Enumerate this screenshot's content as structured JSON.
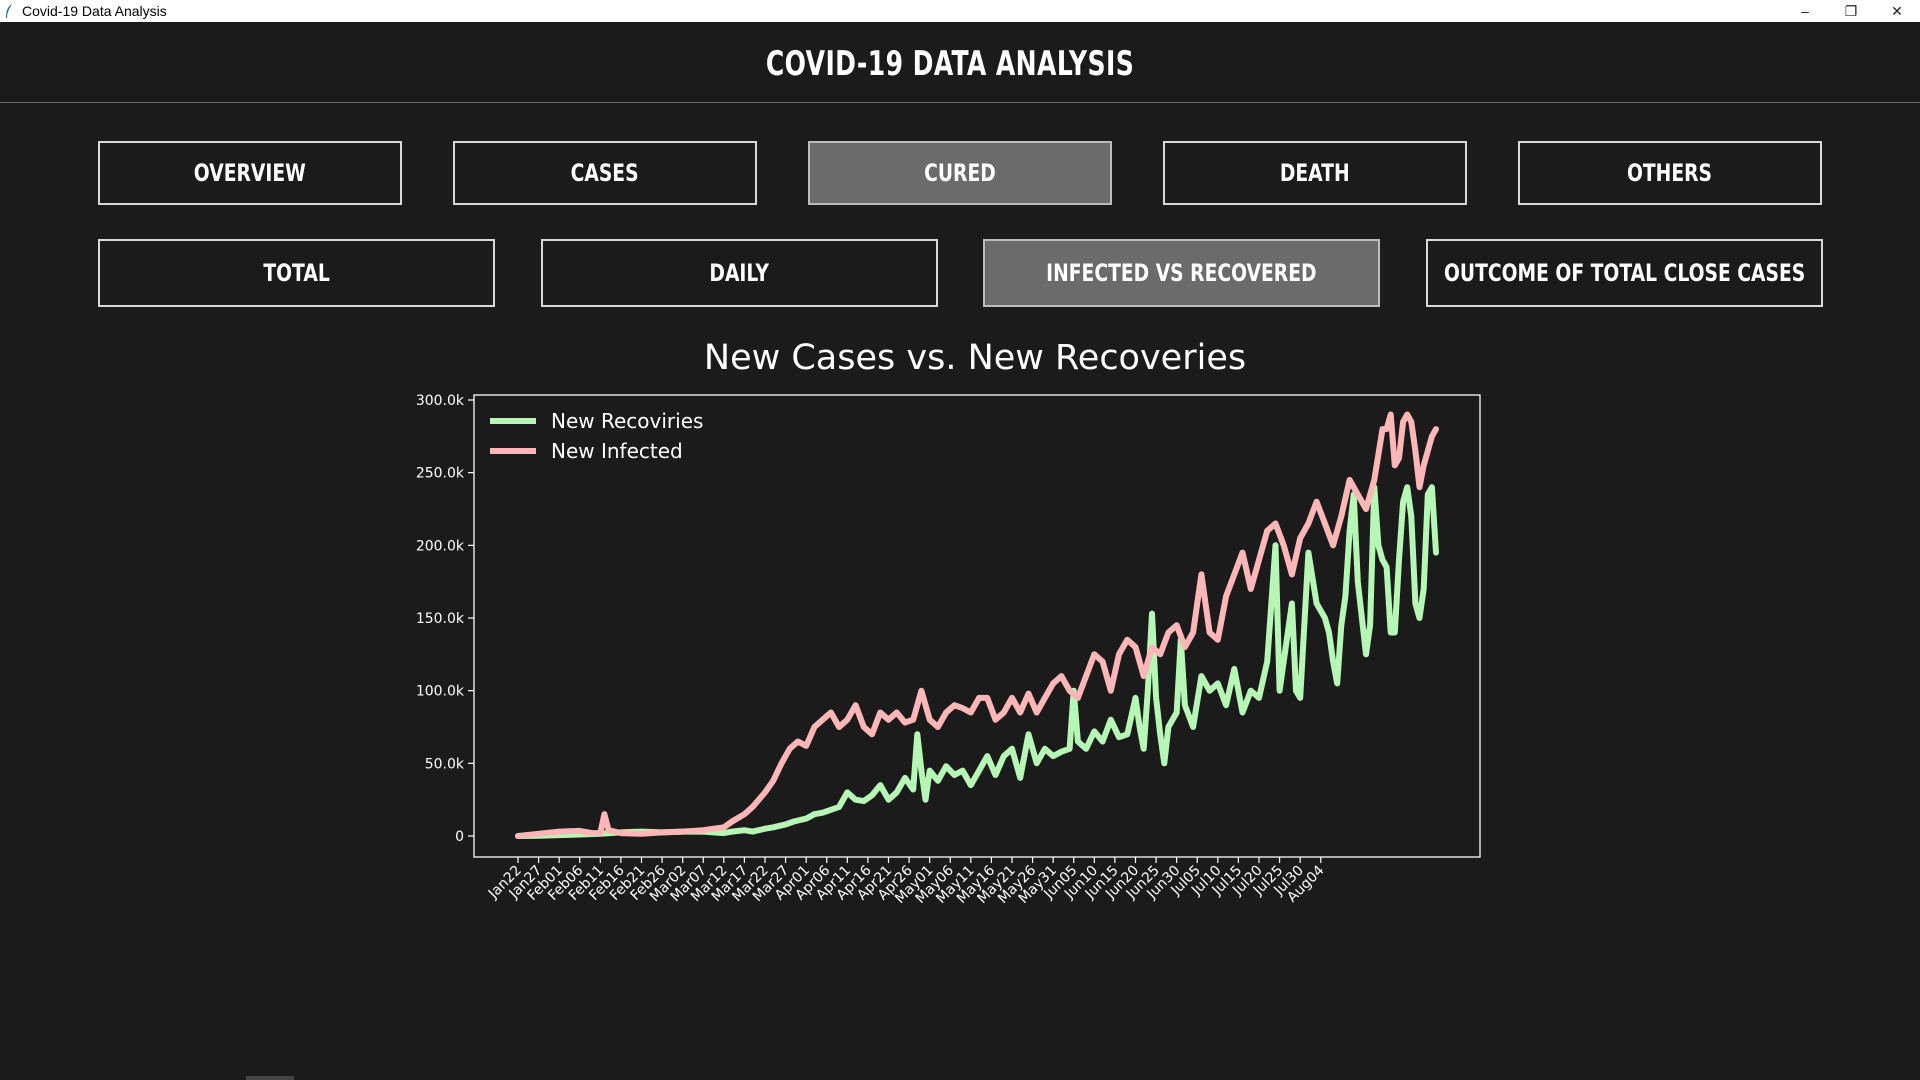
{
  "window": {
    "title": "Covid-19 Data Analysis",
    "minimize": "–",
    "restore": "❐",
    "close": "✕"
  },
  "header": {
    "title": "COVID-19 DATA ANALYSIS"
  },
  "nav": {
    "tabs": [
      {
        "label": "OVERVIEW",
        "active": false
      },
      {
        "label": "CASES",
        "active": false
      },
      {
        "label": "CURED",
        "active": true
      },
      {
        "label": "DEATH",
        "active": false
      },
      {
        "label": "OTHERS",
        "active": false
      }
    ],
    "subtabs": [
      {
        "label": "TOTAL",
        "active": false
      },
      {
        "label": "DAILY",
        "active": false
      },
      {
        "label": "INFECTED VS RECOVERED",
        "active": true
      },
      {
        "label": "OUTCOME OF TOTAL CLOSE CASES",
        "active": false
      }
    ]
  },
  "colors": {
    "background": "#1b1b1c",
    "recovered": "#b6f7b5",
    "infected": "#ffb6b6",
    "active_tab": "#6b6b6b"
  },
  "chart_data": {
    "type": "line",
    "title": "New Cases vs. New Recoveries",
    "xlabel": "",
    "ylabel": "",
    "ylim": [
      -15000,
      300000
    ],
    "legend_position": "top-left",
    "grid": false,
    "y_ticks": [
      0,
      50000,
      100000,
      150000,
      200000,
      250000,
      300000
    ],
    "y_tick_labels": [
      "0",
      "50.0k",
      "100.0k",
      "150.0k",
      "200.0k",
      "250.0k",
      "300.0k"
    ],
    "x_tick_labels": [
      "Jan22",
      "Jan27",
      "Feb01",
      "Feb06",
      "Feb11",
      "Feb16",
      "Feb21",
      "Feb26",
      "Mar02",
      "Mar07",
      "Mar12",
      "Mar17",
      "Mar22",
      "Mar27",
      "Apr01",
      "Apr06",
      "Apr11",
      "Apr16",
      "Apr21",
      "Apr26",
      "May01",
      "May06",
      "May11",
      "May16",
      "May21",
      "May26",
      "May31",
      "Jun05",
      "Jun10",
      "Jun15",
      "Jun20",
      "Jun25",
      "Jun30",
      "Jul05",
      "Jul10",
      "Jul15",
      "Jul20",
      "Jul25",
      "Jul30",
      "Aug04"
    ],
    "series": [
      {
        "name": "New Recoviries",
        "color": "#b6f7b5",
        "points": [
          [
            0,
            0
          ],
          [
            5,
            200
          ],
          [
            10,
            600
          ],
          [
            15,
            1000
          ],
          [
            20,
            1500
          ],
          [
            25,
            2500
          ],
          [
            30,
            3000
          ],
          [
            35,
            2500
          ],
          [
            40,
            3000
          ],
          [
            45,
            3000
          ],
          [
            50,
            2000
          ],
          [
            52,
            3000
          ],
          [
            55,
            4000
          ],
          [
            57,
            3000
          ],
          [
            60,
            5000
          ],
          [
            62,
            6000
          ],
          [
            65,
            8000
          ],
          [
            67,
            10000
          ],
          [
            70,
            12000
          ],
          [
            72,
            15000
          ],
          [
            74,
            16000
          ],
          [
            76,
            18000
          ],
          [
            78,
            20000
          ],
          [
            80,
            30000
          ],
          [
            82,
            25000
          ],
          [
            84,
            24000
          ],
          [
            86,
            28000
          ],
          [
            88,
            35000
          ],
          [
            90,
            25000
          ],
          [
            92,
            30000
          ],
          [
            94,
            40000
          ],
          [
            96,
            32000
          ],
          [
            97,
            70000
          ],
          [
            98,
            45000
          ],
          [
            99,
            25000
          ],
          [
            100,
            45000
          ],
          [
            102,
            38000
          ],
          [
            104,
            48000
          ],
          [
            106,
            42000
          ],
          [
            108,
            45000
          ],
          [
            110,
            35000
          ],
          [
            112,
            45000
          ],
          [
            114,
            55000
          ],
          [
            116,
            42000
          ],
          [
            118,
            55000
          ],
          [
            120,
            60000
          ],
          [
            122,
            40000
          ],
          [
            124,
            70000
          ],
          [
            126,
            50000
          ],
          [
            128,
            60000
          ],
          [
            130,
            55000
          ],
          [
            132,
            58000
          ],
          [
            134,
            60000
          ],
          [
            135,
            100000
          ],
          [
            136,
            65000
          ],
          [
            138,
            60000
          ],
          [
            140,
            72000
          ],
          [
            142,
            65000
          ],
          [
            144,
            80000
          ],
          [
            146,
            68000
          ],
          [
            148,
            70000
          ],
          [
            150,
            95000
          ],
          [
            151,
            75000
          ],
          [
            152,
            60000
          ],
          [
            153,
            100000
          ],
          [
            154,
            153000
          ],
          [
            155,
            95000
          ],
          [
            156,
            70000
          ],
          [
            157,
            50000
          ],
          [
            158,
            75000
          ],
          [
            160,
            85000
          ],
          [
            161,
            135000
          ],
          [
            162,
            90000
          ],
          [
            164,
            75000
          ],
          [
            166,
            110000
          ],
          [
            168,
            100000
          ],
          [
            170,
            105000
          ],
          [
            172,
            90000
          ],
          [
            174,
            115000
          ],
          [
            176,
            85000
          ],
          [
            178,
            100000
          ],
          [
            180,
            95000
          ],
          [
            182,
            120000
          ],
          [
            184,
            200000
          ],
          [
            185,
            100000
          ],
          [
            186,
            120000
          ],
          [
            188,
            160000
          ],
          [
            189,
            100000
          ],
          [
            190,
            95000
          ],
          [
            192,
            195000
          ],
          [
            194,
            160000
          ],
          [
            196,
            150000
          ],
          [
            197,
            140000
          ],
          [
            198,
            120000
          ],
          [
            199,
            105000
          ],
          [
            200,
            145000
          ],
          [
            201,
            165000
          ],
          [
            202,
            210000
          ],
          [
            203,
            235000
          ],
          [
            204,
            175000
          ],
          [
            205,
            150000
          ],
          [
            206,
            125000
          ],
          [
            207,
            145000
          ],
          [
            208,
            240000
          ],
          [
            209,
            200000
          ],
          [
            210,
            190000
          ],
          [
            211,
            185000
          ],
          [
            212,
            140000
          ],
          [
            213,
            140000
          ],
          [
            214,
            190000
          ],
          [
            215,
            230000
          ],
          [
            216,
            240000
          ],
          [
            217,
            220000
          ],
          [
            218,
            160000
          ],
          [
            219,
            150000
          ],
          [
            220,
            170000
          ],
          [
            221,
            235000
          ],
          [
            222,
            240000
          ],
          [
            223,
            195000
          ]
        ]
      },
      {
        "name": "New Infected",
        "color": "#ffb6b6",
        "points": [
          [
            0,
            0
          ],
          [
            5,
            1500
          ],
          [
            10,
            3000
          ],
          [
            15,
            3500
          ],
          [
            18,
            2000
          ],
          [
            20,
            2000
          ],
          [
            21,
            15000
          ],
          [
            22,
            4000
          ],
          [
            25,
            2000
          ],
          [
            30,
            1500
          ],
          [
            35,
            2500
          ],
          [
            40,
            3000
          ],
          [
            45,
            4000
          ],
          [
            50,
            6000
          ],
          [
            52,
            10000
          ],
          [
            55,
            15000
          ],
          [
            57,
            20000
          ],
          [
            60,
            30000
          ],
          [
            62,
            38000
          ],
          [
            64,
            50000
          ],
          [
            66,
            60000
          ],
          [
            68,
            65000
          ],
          [
            70,
            62000
          ],
          [
            72,
            75000
          ],
          [
            74,
            80000
          ],
          [
            76,
            85000
          ],
          [
            78,
            75000
          ],
          [
            80,
            80000
          ],
          [
            82,
            90000
          ],
          [
            84,
            75000
          ],
          [
            86,
            70000
          ],
          [
            88,
            85000
          ],
          [
            90,
            80000
          ],
          [
            92,
            85000
          ],
          [
            94,
            78000
          ],
          [
            96,
            80000
          ],
          [
            98,
            100000
          ],
          [
            100,
            80000
          ],
          [
            102,
            75000
          ],
          [
            104,
            85000
          ],
          [
            106,
            90000
          ],
          [
            108,
            88000
          ],
          [
            110,
            85000
          ],
          [
            112,
            95000
          ],
          [
            114,
            95000
          ],
          [
            116,
            80000
          ],
          [
            118,
            85000
          ],
          [
            120,
            95000
          ],
          [
            122,
            85000
          ],
          [
            124,
            98000
          ],
          [
            126,
            85000
          ],
          [
            128,
            95000
          ],
          [
            130,
            105000
          ],
          [
            132,
            110000
          ],
          [
            134,
            100000
          ],
          [
            136,
            95000
          ],
          [
            138,
            110000
          ],
          [
            140,
            125000
          ],
          [
            142,
            120000
          ],
          [
            144,
            100000
          ],
          [
            146,
            125000
          ],
          [
            148,
            135000
          ],
          [
            150,
            130000
          ],
          [
            152,
            110000
          ],
          [
            154,
            130000
          ],
          [
            156,
            125000
          ],
          [
            158,
            140000
          ],
          [
            160,
            145000
          ],
          [
            162,
            130000
          ],
          [
            164,
            140000
          ],
          [
            166,
            180000
          ],
          [
            168,
            140000
          ],
          [
            170,
            135000
          ],
          [
            172,
            165000
          ],
          [
            174,
            180000
          ],
          [
            176,
            195000
          ],
          [
            178,
            170000
          ],
          [
            180,
            190000
          ],
          [
            182,
            210000
          ],
          [
            184,
            215000
          ],
          [
            186,
            200000
          ],
          [
            188,
            180000
          ],
          [
            190,
            205000
          ],
          [
            192,
            215000
          ],
          [
            194,
            230000
          ],
          [
            196,
            215000
          ],
          [
            198,
            200000
          ],
          [
            200,
            220000
          ],
          [
            202,
            245000
          ],
          [
            204,
            235000
          ],
          [
            206,
            225000
          ],
          [
            208,
            245000
          ],
          [
            210,
            280000
          ],
          [
            211,
            280000
          ],
          [
            212,
            290000
          ],
          [
            213,
            255000
          ],
          [
            214,
            260000
          ],
          [
            215,
            285000
          ],
          [
            216,
            290000
          ],
          [
            217,
            285000
          ],
          [
            218,
            265000
          ],
          [
            219,
            240000
          ],
          [
            220,
            255000
          ],
          [
            221,
            265000
          ],
          [
            222,
            275000
          ],
          [
            223,
            280000
          ]
        ]
      }
    ]
  }
}
